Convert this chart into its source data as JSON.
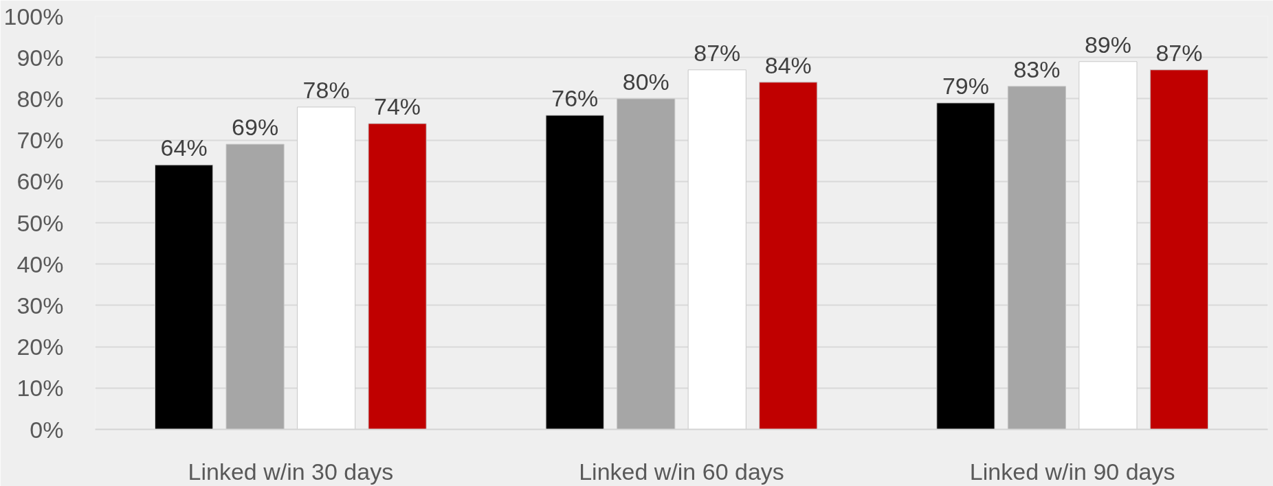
{
  "chart_data": {
    "type": "bar",
    "categories": [
      "Linked w/in 30 days",
      "Linked w/in 60 days",
      "Linked w/in 90 days"
    ],
    "series": [
      {
        "color": "#000000",
        "values": [
          64,
          76,
          79
        ],
        "value_labels": [
          "64%",
          "76%",
          "79%"
        ]
      },
      {
        "color": "#a6a6a6",
        "values": [
          69,
          80,
          83
        ],
        "value_labels": [
          "69%",
          "80%",
          "83%"
        ]
      },
      {
        "color": "#ffffff",
        "values": [
          78,
          87,
          89
        ],
        "value_labels": [
          "78%",
          "87%",
          "89%"
        ]
      },
      {
        "color": "#c00000",
        "values": [
          74,
          84,
          87
        ],
        "value_labels": [
          "74%",
          "84%",
          "87%"
        ]
      }
    ],
    "ylim": [
      0,
      100
    ],
    "yticks": [
      {
        "value": 0,
        "label": "0%"
      },
      {
        "value": 10,
        "label": "10%"
      },
      {
        "value": 20,
        "label": "20%"
      },
      {
        "value": 30,
        "label": "30%"
      },
      {
        "value": 40,
        "label": "40%"
      },
      {
        "value": 50,
        "label": "50%"
      },
      {
        "value": 60,
        "label": "60%"
      },
      {
        "value": 70,
        "label": "70%"
      },
      {
        "value": 80,
        "label": "80%"
      },
      {
        "value": 90,
        "label": "90%"
      },
      {
        "value": 100,
        "label": "100%"
      }
    ],
    "grid": "y"
  }
}
